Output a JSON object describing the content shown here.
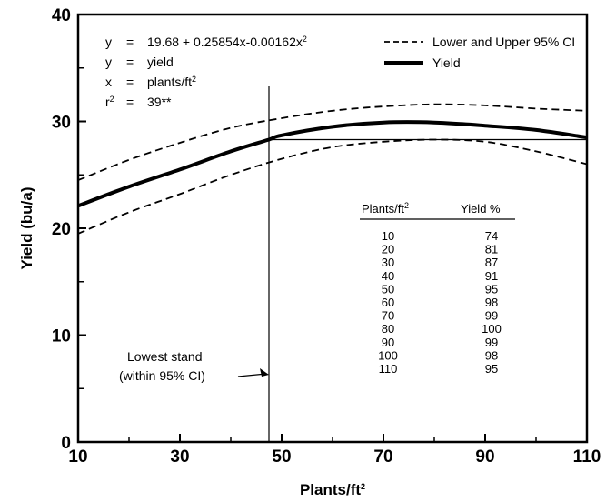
{
  "chart_data": {
    "type": "line",
    "xlabel": "Plants/ft",
    "xlabel_sup": "2",
    "ylabel": "Yield (bu/a)",
    "xlim": [
      10,
      110
    ],
    "ylim": [
      0,
      40
    ],
    "x_ticks": [
      10,
      30,
      50,
      70,
      90,
      110
    ],
    "y_ticks": [
      0,
      10,
      20,
      30,
      40
    ],
    "equation": {
      "lines": [
        {
          "lhs": "y",
          "op": "=",
          "rhs": "19.68 + 0.25854x-0.00162x",
          "sup": "2"
        },
        {
          "lhs": "y",
          "op": "=",
          "rhs": "yield",
          "sup": ""
        },
        {
          "lhs": "x",
          "op": "=",
          "rhs": "plants/ft",
          "sup": "2"
        },
        {
          "lhs": "r",
          "lhs_sup": "2",
          "op": "=",
          "rhs": "39**",
          "sup": ""
        }
      ]
    },
    "legend": {
      "placement": "top-right",
      "entries": [
        {
          "label": "Lower and Upper 95% CI",
          "style": "dashed"
        },
        {
          "label": "Yield",
          "style": "solid-thick"
        }
      ]
    },
    "series": [
      {
        "name": "Yield",
        "style": "solid-thick",
        "x": [
          10,
          20,
          30,
          40,
          47.5,
          50,
          60,
          70,
          80,
          90,
          100,
          110
        ],
        "y": [
          22.1,
          23.9,
          25.5,
          27.2,
          28.3,
          28.7,
          29.5,
          29.9,
          29.9,
          29.6,
          29.2,
          28.5
        ]
      },
      {
        "name": "Upper 95% CI",
        "style": "dashed",
        "x": [
          10,
          20,
          30,
          40,
          50,
          60,
          70,
          80,
          90,
          100,
          110
        ],
        "y": [
          24.5,
          26.4,
          28.0,
          29.4,
          30.3,
          31.0,
          31.4,
          31.6,
          31.5,
          31.2,
          31.0
        ]
      },
      {
        "name": "Lower 95% CI",
        "style": "dashed",
        "x": [
          10,
          20,
          30,
          40,
          50,
          60,
          70,
          80,
          90,
          100,
          110
        ],
        "y": [
          19.5,
          21.5,
          23.2,
          25.0,
          26.5,
          27.6,
          28.1,
          28.3,
          28.1,
          27.2,
          26.0
        ]
      }
    ],
    "reference_lines": {
      "vertical_x": 47.5,
      "horizontal_y": 28.3,
      "horizontal_x_range": [
        47.5,
        110
      ]
    },
    "annotation": {
      "lines": [
        "Lowest stand",
        "(within 95% CI)"
      ],
      "points_to_x": 47.5,
      "points_to_y": 6.3
    },
    "table": {
      "headers": [
        "Plants/ft",
        "Yield %"
      ],
      "header_sup": "2",
      "rows": [
        [
          "10",
          "74"
        ],
        [
          "20",
          "81"
        ],
        [
          "30",
          "87"
        ],
        [
          "40",
          "91"
        ],
        [
          "50",
          "95"
        ],
        [
          "60",
          "98"
        ],
        [
          "70",
          "99"
        ],
        [
          "80",
          "100"
        ],
        [
          "90",
          "99"
        ],
        [
          "100",
          "98"
        ],
        [
          "110",
          "95"
        ]
      ]
    }
  }
}
